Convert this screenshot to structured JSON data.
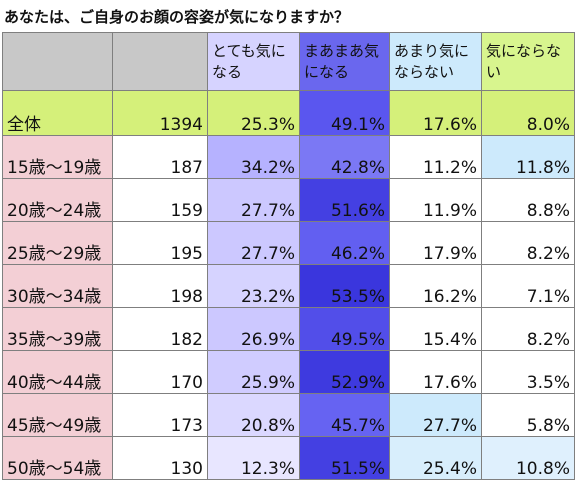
{
  "title": "あなたは、ご自身のお顔の容姿が気になりますか？",
  "headers": [
    "",
    "",
    "とても気になる",
    "まあまあ気になる",
    "あまり気にならない",
    "気にならない"
  ],
  "total": {
    "label": "全体",
    "n": "1394",
    "values": [
      "25.3%",
      "49.1%",
      "17.6%",
      "8.0%"
    ],
    "b_color": "#5a56ef"
  },
  "rows": [
    {
      "label": "15歳～19歳",
      "n": "187",
      "values": [
        "34.2%",
        "42.8%",
        "11.2%",
        "11.8%"
      ],
      "a_color": "#b6b2ff",
      "b_color": "#7b78f4",
      "c_color": "#ffffff",
      "d_color": "#cdeafc"
    },
    {
      "label": "20歳～24歳",
      "n": "159",
      "values": [
        "27.7%",
        "51.6%",
        "11.9%",
        "8.8%"
      ],
      "a_color": "#ccc8ff",
      "b_color": "#4440e2",
      "c_color": "#ffffff",
      "d_color": "#ffffff"
    },
    {
      "label": "25歳～29歳",
      "n": "195",
      "values": [
        "27.7%",
        "46.2%",
        "17.9%",
        "8.2%"
      ],
      "a_color": "#ccc8ff",
      "b_color": "#625ff1",
      "c_color": "#ffffff",
      "d_color": "#ffffff"
    },
    {
      "label": "30歳～34歳",
      "n": "198",
      "values": [
        "23.2%",
        "53.5%",
        "16.2%",
        "7.1%"
      ],
      "a_color": "#d6d3ff",
      "b_color": "#3a36dd",
      "c_color": "#ffffff",
      "d_color": "#ffffff"
    },
    {
      "label": "35歳～39歳",
      "n": "182",
      "values": [
        "26.9%",
        "49.5%",
        "15.4%",
        "8.2%"
      ],
      "a_color": "#ccc8ff",
      "b_color": "#524ee9",
      "c_color": "#ffffff",
      "d_color": "#ffffff"
    },
    {
      "label": "40歳～44歳",
      "n": "170",
      "values": [
        "25.9%",
        "52.9%",
        "17.6%",
        "3.5%"
      ],
      "a_color": "#d0ccff",
      "b_color": "#3e3adf",
      "c_color": "#ffffff",
      "d_color": "#ffffff"
    },
    {
      "label": "45歳～49歳",
      "n": "173",
      "values": [
        "20.8%",
        "45.7%",
        "27.7%",
        "5.8%"
      ],
      "a_color": "#dbd8ff",
      "b_color": "#6663f2",
      "c_color": "#cdeafc",
      "d_color": "#ffffff"
    },
    {
      "label": "50歳～54歳",
      "n": "130",
      "values": [
        "12.3%",
        "51.5%",
        "25.4%",
        "10.8%"
      ],
      "a_color": "#e8e6ff",
      "b_color": "#4440e2",
      "c_color": "#d8eefc",
      "d_color": "#dff0fd"
    }
  ]
}
